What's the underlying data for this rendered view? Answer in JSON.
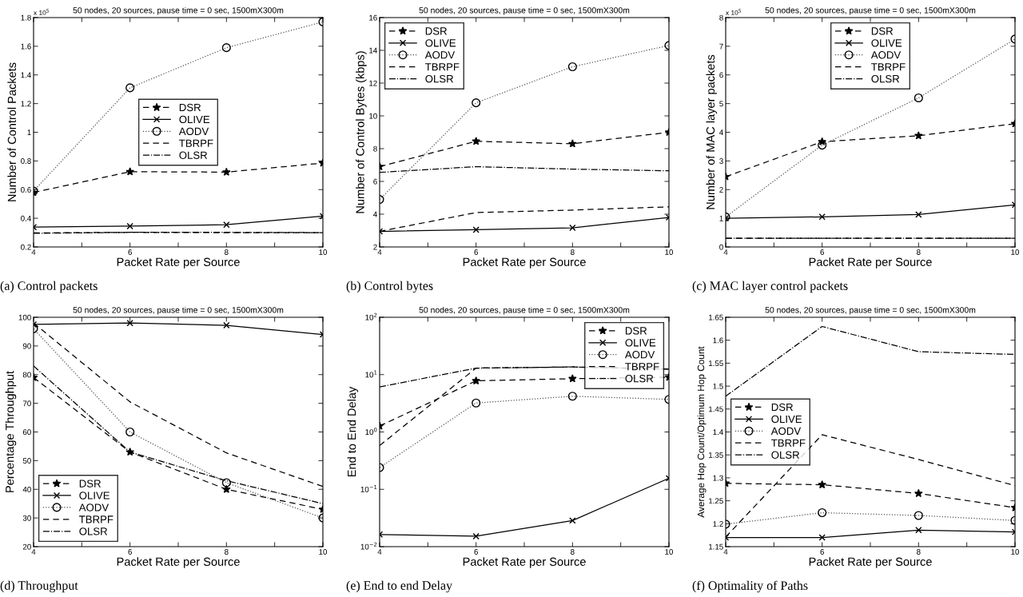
{
  "chart_data": [
    {
      "type": "line",
      "title": "50 nodes, 20 sources, pause time = 0 sec, 1500mX300m",
      "xlabel": "Packet Rate per Source",
      "ylabel": "Number of Control Packets",
      "annotations": [
        "(a) Control packets",
        "x 10$^{5}$"
      ],
      "x": [
        4,
        6,
        8,
        10
      ],
      "xlim": [
        4,
        10
      ],
      "xticks": [
        4,
        {
          "value": 5,
          "label": null
        },
        6,
        {
          "value": 7,
          "label": null
        },
        8,
        {
          "value": 9,
          "label": null
        },
        10
      ],
      "ylim": [
        0.2,
        1.8
      ],
      "yticks": [
        0.2,
        0.4,
        0.6,
        0.8,
        {
          "value": 1.0,
          "label": "1"
        },
        1.2,
        1.4,
        1.6,
        1.8
      ],
      "legend": "center",
      "grid": false,
      "series": [
        {
          "name": "DSR",
          "color": "#000000",
          "line_style": "dashed",
          "marker": "star",
          "values": [
            0.58,
            0.725,
            0.722,
            0.785
          ]
        },
        {
          "name": "OLIVE",
          "color": "#000000",
          "line_style": "solid",
          "marker": "cross",
          "values": [
            0.338,
            0.345,
            0.355,
            0.415
          ]
        },
        {
          "name": "AODV",
          "color": "#555555",
          "line_style": "dotted",
          "marker": "circle",
          "values": [
            0.59,
            1.31,
            1.59,
            1.77
          ]
        },
        {
          "name": "TBRPF",
          "color": "#000000",
          "line_style": "dashed",
          "marker": "none",
          "values": [
            0.298,
            0.302,
            0.3,
            0.3
          ]
        },
        {
          "name": "OLSR",
          "color": "#000000",
          "line_style": "dashdot",
          "marker": "none",
          "values": [
            0.295,
            0.302,
            0.302,
            0.3
          ]
        }
      ]
    },
    {
      "type": "line",
      "title": "50 nodes, 20 sources, pause time = 0 sec, 1500mX300m",
      "xlabel": "Packet Rate per Source",
      "ylabel": "Number of Control Bytes (kbps)",
      "annotations": [
        "(b) Control bytes"
      ],
      "x": [
        4,
        6,
        8,
        10
      ],
      "xlim": [
        4,
        10
      ],
      "xticks": [
        4,
        {
          "value": 5,
          "label": null
        },
        6,
        {
          "value": 7,
          "label": null
        },
        8,
        {
          "value": 9,
          "label": null
        },
        10
      ],
      "ylim": [
        2,
        16
      ],
      "yticks": [
        2,
        4,
        6,
        8,
        10,
        12,
        14,
        16
      ],
      "legend": "top left",
      "grid": false,
      "series": [
        {
          "name": "DSR",
          "color": "#000000",
          "line_style": "dashed",
          "marker": "star",
          "values": [
            6.9,
            8.45,
            8.3,
            9.0
          ]
        },
        {
          "name": "OLIVE",
          "color": "#000000",
          "line_style": "solid",
          "marker": "cross",
          "values": [
            2.95,
            3.05,
            3.17,
            3.8
          ]
        },
        {
          "name": "AODV",
          "color": "#555555",
          "line_style": "dotted",
          "marker": "circle",
          "values": [
            4.9,
            10.8,
            13.0,
            14.3
          ]
        },
        {
          "name": "TBRPF",
          "color": "#000000",
          "line_style": "dashed",
          "marker": "none",
          "values": [
            2.95,
            4.1,
            4.25,
            4.45
          ]
        },
        {
          "name": "OLSR",
          "color": "#000000",
          "line_style": "dashdot",
          "marker": "none",
          "values": [
            6.55,
            6.9,
            6.75,
            6.65
          ]
        }
      ]
    },
    {
      "type": "line",
      "title": "50 nodes, 20 sources, pause time = 0 sec, 1500mX300m",
      "xlabel": "Packet Rate per Source",
      "ylabel": "Number of MAC layer packets",
      "annotations": [
        "(c) MAC layer control packets",
        "x 10$^{5}$"
      ],
      "x": [
        4,
        6,
        8,
        10
      ],
      "xlim": [
        4,
        10
      ],
      "xticks": [
        4,
        {
          "value": 5,
          "label": null
        },
        6,
        {
          "value": 7,
          "label": null
        },
        8,
        {
          "value": 9,
          "label": null
        },
        10
      ],
      "ylim": [
        0,
        8
      ],
      "yticks": [
        0,
        1,
        2,
        3,
        4,
        5,
        6,
        7,
        8
      ],
      "legend": "top",
      "grid": false,
      "series": [
        {
          "name": "DSR",
          "color": "#000000",
          "line_style": "dashed",
          "marker": "star",
          "values": [
            2.45,
            3.67,
            3.88,
            4.3
          ]
        },
        {
          "name": "OLIVE",
          "color": "#000000",
          "line_style": "solid",
          "marker": "cross",
          "values": [
            1.0,
            1.05,
            1.13,
            1.47
          ]
        },
        {
          "name": "AODV",
          "color": "#555555",
          "line_style": "dotted",
          "marker": "circle",
          "values": [
            1.05,
            3.55,
            5.2,
            7.25
          ]
        },
        {
          "name": "TBRPF",
          "color": "#000000",
          "line_style": "dashed",
          "marker": "none",
          "values": [
            0.3,
            0.3,
            0.3,
            0.3
          ]
        },
        {
          "name": "OLSR",
          "color": "#000000",
          "line_style": "dashdot",
          "marker": "none",
          "values": [
            0.3,
            0.3,
            0.3,
            0.3
          ]
        }
      ]
    },
    {
      "type": "line",
      "title": "50 nodes, 20 sources, pause time = 0 sec, 1500mX300m",
      "xlabel": "Packet Rate per Source",
      "ylabel": "Percentage Throughput",
      "annotations": [
        "(d) Throughput"
      ],
      "x": [
        4,
        6,
        8,
        10
      ],
      "xlim": [
        4,
        10
      ],
      "xticks": [
        4,
        {
          "value": 5,
          "label": null
        },
        6,
        {
          "value": 7,
          "label": null
        },
        8,
        {
          "value": 9,
          "label": null
        },
        10
      ],
      "ylim": [
        20,
        100
      ],
      "yticks": [
        20,
        30,
        40,
        50,
        60,
        70,
        80,
        90,
        100
      ],
      "legend": "bottom left",
      "grid": false,
      "series": [
        {
          "name": "DSR",
          "color": "#000000",
          "line_style": "dashed",
          "marker": "star",
          "values": [
            79,
            53,
            40,
            33
          ]
        },
        {
          "name": "OLIVE",
          "color": "#000000",
          "line_style": "solid",
          "marker": "cross",
          "values": [
            97.5,
            98,
            97.2,
            94
          ]
        },
        {
          "name": "AODV",
          "color": "#555555",
          "line_style": "dotted",
          "marker": "circle",
          "values": [
            96,
            60,
            42.3,
            30
          ]
        },
        {
          "name": "TBRPF",
          "color": "#000000",
          "line_style": "dashed",
          "marker": "none",
          "values": [
            98,
            70.5,
            52.7,
            41
          ]
        },
        {
          "name": "OLSR",
          "color": "#000000",
          "line_style": "dashdot",
          "marker": "none",
          "values": [
            83,
            53,
            43,
            35
          ]
        }
      ]
    },
    {
      "type": "line",
      "title": "50 nodes, 20 sources, pause time = 0 sec, 1500mX300m",
      "xlabel": "Packet Rate per Source",
      "ylabel": "End to End Delay",
      "annotations": [
        "(e) End to end Delay"
      ],
      "x": [
        4,
        6,
        8,
        10
      ],
      "xlim": [
        4,
        10
      ],
      "xticks": [
        4,
        {
          "value": 5,
          "label": null
        },
        6,
        {
          "value": 7,
          "label": null
        },
        8,
        {
          "value": 9,
          "label": null
        },
        10
      ],
      "log": "y",
      "ylim": [
        0.01,
        100
      ],
      "yticks": [
        {
          "value": 0.01,
          "label": "10$^{−2}$"
        },
        {
          "value": 0.1,
          "label": "10$^{−1}$"
        },
        {
          "value": 1,
          "label": "10$^{0}$"
        },
        {
          "value": 10,
          "label": "10$^{1}$"
        },
        {
          "value": 100,
          "label": "10$^{2}$"
        }
      ],
      "legend": "top right",
      "grid": false,
      "series": [
        {
          "name": "DSR",
          "color": "#000000",
          "line_style": "dashed",
          "marker": "star",
          "values": [
            1.27,
            7.8,
            8.5,
            9.0
          ]
        },
        {
          "name": "OLIVE",
          "color": "#000000",
          "line_style": "solid",
          "marker": "cross",
          "values": [
            0.0163,
            0.0152,
            0.0285,
            0.156
          ]
        },
        {
          "name": "AODV",
          "color": "#555555",
          "line_style": "dotted",
          "marker": "circle",
          "values": [
            0.24,
            3.2,
            4.2,
            3.7
          ]
        },
        {
          "name": "TBRPF",
          "color": "#000000",
          "line_style": "dashed",
          "marker": "none",
          "values": [
            0.58,
            13,
            13.6,
            12.5
          ]
        },
        {
          "name": "OLSR",
          "color": "#000000",
          "line_style": "dashdot",
          "marker": "none",
          "values": [
            6.1,
            13,
            13.6,
            12.5
          ]
        }
      ]
    },
    {
      "type": "line",
      "title": "50 nodes, 20 sources, pause time = 0 sec, 1500mX300m",
      "xlabel": "Packet Rate per Source",
      "ylabel": "Average Hop Count/Optimum Hop Count",
      "annotations": [
        "(f) Optimality of Paths"
      ],
      "x": [
        4,
        6,
        8,
        10
      ],
      "xlim": [
        4,
        10
      ],
      "xticks": [
        4,
        {
          "value": 5,
          "label": null
        },
        6,
        {
          "value": 7,
          "label": null
        },
        8,
        {
          "value": 9,
          "label": null
        },
        10
      ],
      "ylim": [
        1.15,
        1.65
      ],
      "yticks": [
        1.15,
        1.2,
        1.25,
        1.3,
        1.35,
        1.4,
        1.45,
        1.5,
        1.55,
        1.6,
        1.65
      ],
      "legend": "center left",
      "grid": false,
      "series": [
        {
          "name": "DSR",
          "color": "#000000",
          "line_style": "dashed",
          "marker": "star",
          "values": [
            1.288,
            1.285,
            1.266,
            1.235
          ]
        },
        {
          "name": "OLIVE",
          "color": "#000000",
          "line_style": "solid",
          "marker": "cross",
          "values": [
            1.17,
            1.17,
            1.186,
            1.182
          ]
        },
        {
          "name": "AODV",
          "color": "#555555",
          "line_style": "dotted",
          "marker": "circle",
          "values": [
            1.199,
            1.224,
            1.218,
            1.207
          ]
        },
        {
          "name": "TBRPF",
          "color": "#000000",
          "line_style": "dashed",
          "marker": "none",
          "values": [
            1.171,
            1.394,
            1.34,
            1.283
          ]
        },
        {
          "name": "OLSR",
          "color": "#000000",
          "line_style": "dashdot",
          "marker": "none",
          "values": [
            1.478,
            1.63,
            1.575,
            1.569
          ]
        }
      ]
    }
  ]
}
